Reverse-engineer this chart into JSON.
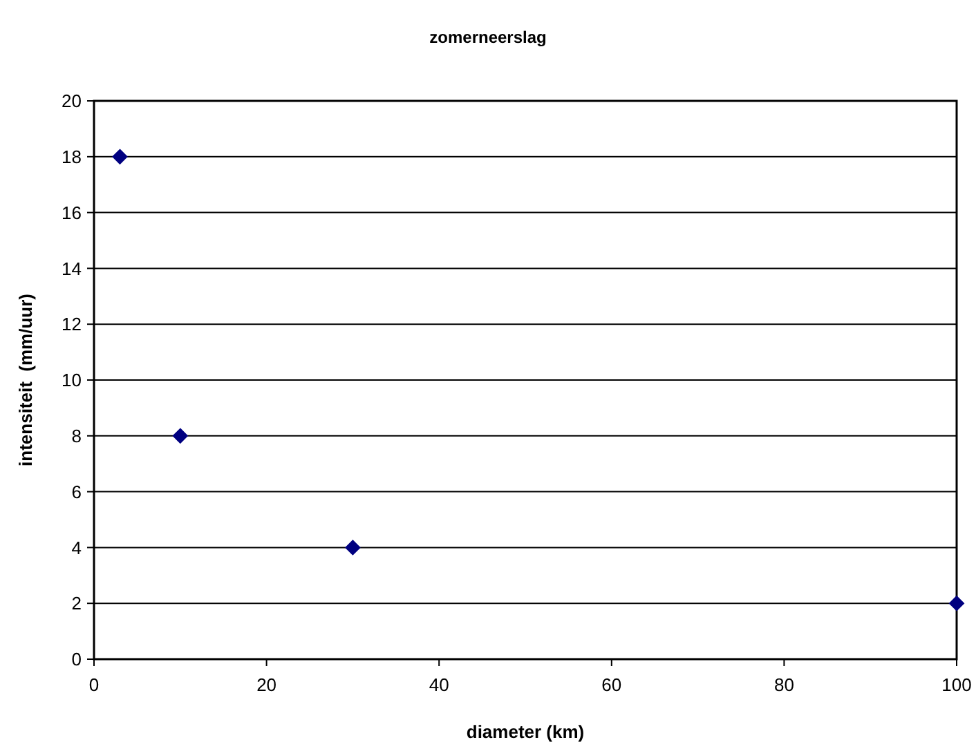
{
  "chart_data": {
    "type": "scatter",
    "title": "zomerneerslag",
    "xlabel": "diameter (km)",
    "ylabel": "intensiteit  (mm/uur)",
    "x": [
      3,
      10,
      30,
      100
    ],
    "series": [
      {
        "color": "#000080",
        "values": [
          18,
          8,
          4,
          2
        ]
      }
    ],
    "xlim": [
      0,
      100
    ],
    "xticks": [
      0,
      20,
      40,
      60,
      80,
      100
    ],
    "ylim": [
      0,
      20
    ],
    "yticks": [
      0,
      2,
      4,
      6,
      8,
      10,
      12,
      14,
      16,
      18,
      20
    ],
    "grid": "y",
    "marker": "diamond"
  }
}
